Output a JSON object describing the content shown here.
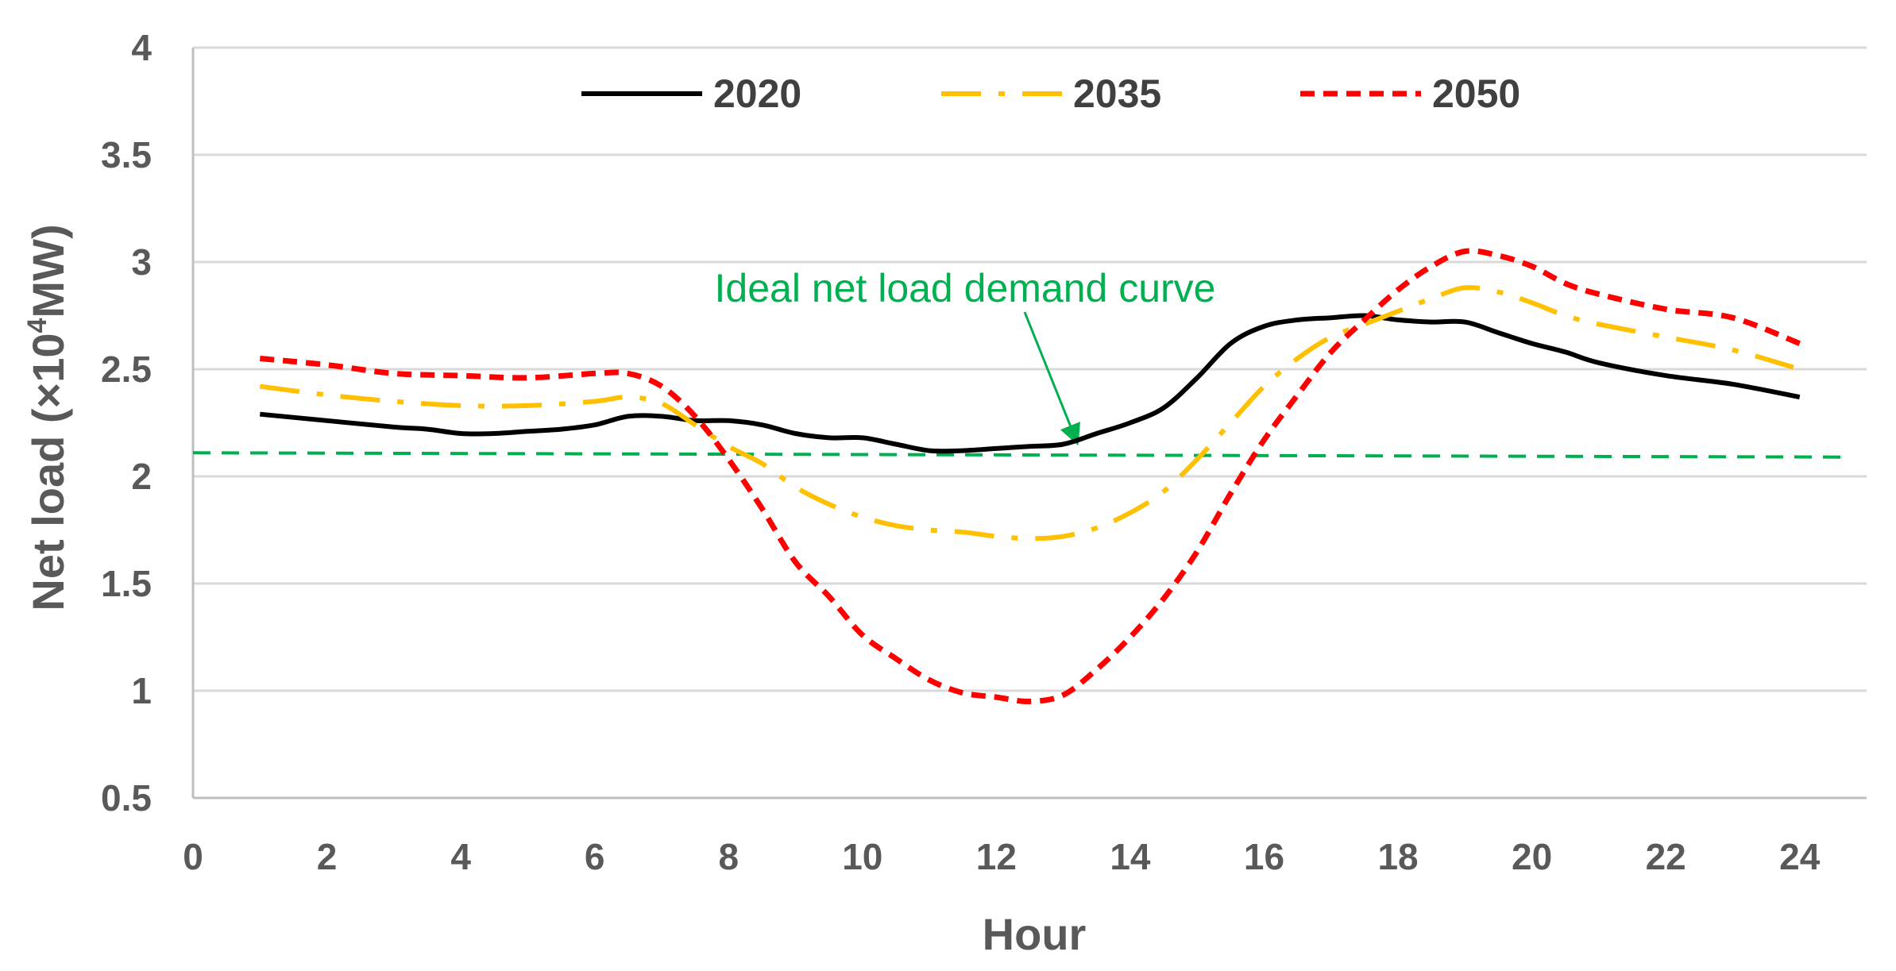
{
  "chart_data": {
    "type": "line",
    "title": "",
    "xlabel": "Hour",
    "ylabel_prefix": "Net load (×10",
    "ylabel_sup": "4",
    "ylabel_suffix": "MW)",
    "xlim": [
      0,
      25
    ],
    "ylim": [
      0.5,
      4
    ],
    "xticks": [
      0,
      2,
      4,
      6,
      8,
      10,
      12,
      14,
      16,
      18,
      20,
      22,
      24
    ],
    "yticks": [
      0.5,
      1,
      1.5,
      2,
      2.5,
      3,
      3.5,
      4
    ],
    "grid": "horizontal",
    "legend_position": "top-center",
    "series": [
      {
        "name": "2020",
        "color": "#000000",
        "dash": "solid",
        "x": [
          1,
          2,
          3,
          3.5,
          4,
          4.5,
          5,
          5.5,
          6,
          6.5,
          7,
          7.5,
          8,
          8.5,
          9,
          9.5,
          10,
          10.5,
          11,
          11.5,
          12,
          12.5,
          13,
          13.5,
          14,
          14.5,
          15,
          15.5,
          16,
          16.5,
          17,
          17.5,
          18,
          18.5,
          19,
          19.5,
          20,
          20.5,
          21,
          22,
          23,
          24
        ],
        "y": [
          2.29,
          2.26,
          2.23,
          2.22,
          2.2,
          2.2,
          2.21,
          2.22,
          2.24,
          2.28,
          2.28,
          2.26,
          2.26,
          2.24,
          2.2,
          2.18,
          2.18,
          2.15,
          2.12,
          2.12,
          2.13,
          2.14,
          2.15,
          2.2,
          2.25,
          2.32,
          2.46,
          2.62,
          2.7,
          2.73,
          2.74,
          2.75,
          2.73,
          2.72,
          2.72,
          2.67,
          2.62,
          2.58,
          2.53,
          2.47,
          2.43,
          2.37
        ]
      },
      {
        "name": "2035",
        "color": "#ffc000",
        "dash": "dashdot",
        "x": [
          1,
          2,
          3,
          4,
          5,
          6,
          6.5,
          7,
          7.5,
          8,
          8.5,
          9,
          9.5,
          10,
          10.5,
          11,
          11.5,
          12,
          12.5,
          13,
          13.5,
          14,
          14.5,
          15,
          15.5,
          16,
          16.5,
          17,
          17.5,
          18,
          18.5,
          19,
          19.5,
          20,
          20.5,
          21,
          22,
          23,
          24
        ],
        "y": [
          2.42,
          2.38,
          2.35,
          2.33,
          2.33,
          2.35,
          2.37,
          2.34,
          2.24,
          2.14,
          2.06,
          1.95,
          1.87,
          1.81,
          1.77,
          1.75,
          1.74,
          1.72,
          1.71,
          1.72,
          1.76,
          1.83,
          1.93,
          2.08,
          2.25,
          2.42,
          2.55,
          2.65,
          2.71,
          2.77,
          2.83,
          2.88,
          2.86,
          2.81,
          2.75,
          2.71,
          2.65,
          2.59,
          2.5
        ]
      },
      {
        "name": "2050",
        "color": "#ff0000",
        "dash": "dash",
        "x": [
          1,
          2,
          3,
          4,
          5,
          6,
          6.5,
          7,
          7.5,
          8,
          8.5,
          9,
          9.5,
          10,
          10.5,
          11,
          11.5,
          12,
          12.5,
          13,
          13.5,
          14,
          14.5,
          15,
          15.5,
          16,
          16.5,
          17,
          17.5,
          18,
          18.5,
          19,
          19.5,
          20,
          20.5,
          21,
          22,
          23,
          24
        ],
        "y": [
          2.55,
          2.52,
          2.48,
          2.47,
          2.46,
          2.48,
          2.48,
          2.42,
          2.28,
          2.08,
          1.85,
          1.6,
          1.44,
          1.26,
          1.15,
          1.05,
          0.99,
          0.97,
          0.95,
          0.98,
          1.1,
          1.25,
          1.43,
          1.65,
          1.92,
          2.17,
          2.38,
          2.58,
          2.73,
          2.87,
          2.98,
          3.05,
          3.03,
          2.98,
          2.9,
          2.85,
          2.78,
          2.74,
          2.62
        ]
      }
    ],
    "reference_line": {
      "label": "Ideal net load demand curve",
      "color": "#00b050",
      "y_start": 2.11,
      "y_end": 2.09,
      "x_start": 0,
      "x_end": 25,
      "arrow_target_x": 13.2,
      "arrow_target_y": 2.14
    }
  }
}
